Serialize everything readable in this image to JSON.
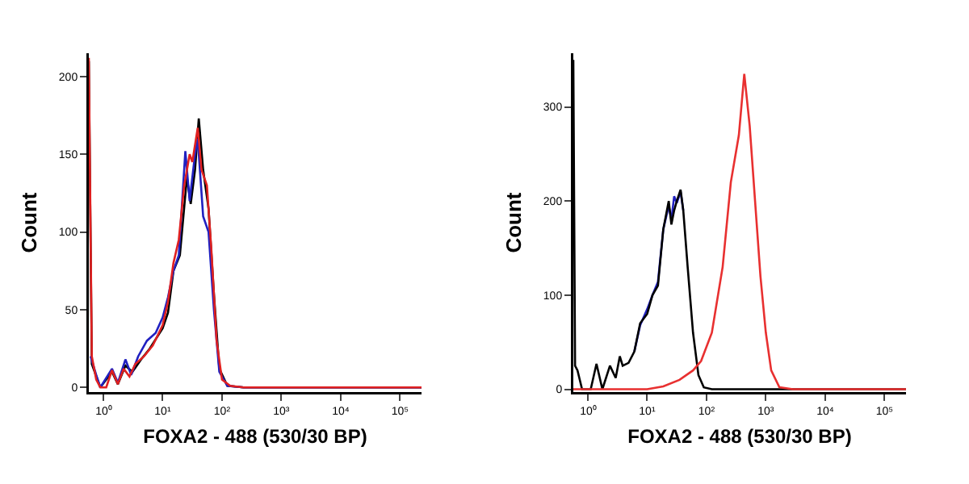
{
  "chart_data": [
    {
      "type": "line",
      "xlabel": "FOXA2 - 488 (530/30 BP)",
      "ylabel": "Count",
      "log": "x",
      "grid": false,
      "marker": "none",
      "line_style": "solid",
      "xlim": [
        0.57,
        230000
      ],
      "xticks": [
        {
          "value": 1,
          "label": "10⁰"
        },
        {
          "value": 10,
          "label": "10¹"
        },
        {
          "value": 100,
          "label": "10²"
        },
        {
          "value": 1000,
          "label": "10³"
        },
        {
          "value": 10000,
          "label": "10⁴"
        },
        {
          "value": 100000,
          "label": "10⁵"
        }
      ],
      "ylim": [
        -3,
        215
      ],
      "yticks": [
        0,
        50,
        100,
        150,
        200
      ],
      "series": [
        {
          "color": "#000000",
          "x": [
            0.57,
            0.64,
            0.89,
            1.4,
            1.76,
            2.36,
            3.09,
            4.34,
            6.08,
            10,
            12.3,
            15.2,
            19.5,
            25.6,
            29.7,
            35.1,
            40.6,
            48.1,
            59.3,
            73.1,
            90.1,
            123,
            231,
            230000
          ],
          "values": [
            210,
            15,
            0,
            10,
            2,
            14,
            10,
            18,
            25,
            38,
            48,
            75,
            85,
            135,
            118,
            140,
            173,
            140,
            115,
            60,
            12,
            1,
            0,
            0
          ]
        },
        {
          "color": "#2020c0",
          "x": [
            0.61,
            0.76,
            0.89,
            1.4,
            1.76,
            2.36,
            2.95,
            3.87,
            5.43,
            7.62,
            10,
            12.3,
            15.2,
            18.7,
            24.1,
            28.5,
            35.1,
            39,
            48.1,
            59.3,
            73.1,
            90.1,
            123,
            231,
            230000
          ],
          "values": [
            20,
            8,
            0,
            12,
            3,
            18,
            8,
            20,
            30,
            35,
            45,
            58,
            75,
            85,
            152,
            120,
            150,
            160,
            110,
            100,
            50,
            10,
            1,
            0,
            0
          ]
        },
        {
          "color": "#e02020",
          "x": [
            0.57,
            0.64,
            0.76,
            0.89,
            1.12,
            1.4,
            1.76,
            2.2,
            2.76,
            3.46,
            4.86,
            6.81,
            10,
            12.3,
            15.2,
            18.7,
            23.1,
            28.5,
            31.6,
            39,
            45.2,
            55.6,
            65.8,
            81.1,
            100,
            137,
            231,
            230000
          ],
          "values": [
            212,
            20,
            5,
            0,
            0,
            11,
            2,
            12,
            7,
            15,
            20,
            27,
            40,
            55,
            80,
            95,
            130,
            150,
            145,
            167,
            140,
            130,
            90,
            30,
            5,
            1,
            0,
            0
          ]
        }
      ]
    },
    {
      "type": "line",
      "xlabel": "FOXA2 - 488 (530/30 BP)",
      "ylabel": "Count",
      "log": "x",
      "grid": false,
      "marker": "none",
      "line_style": "solid",
      "xlim": [
        0.57,
        230000
      ],
      "xticks": [
        {
          "value": 1,
          "label": "10⁰"
        },
        {
          "value": 10,
          "label": "10¹"
        },
        {
          "value": 100,
          "label": "10²"
        },
        {
          "value": 1000,
          "label": "10³"
        },
        {
          "value": 10000,
          "label": "10⁴"
        },
        {
          "value": 100000,
          "label": "10⁵"
        }
      ],
      "ylim": [
        -3,
        357
      ],
      "yticks": [
        0,
        100,
        200,
        300
      ],
      "series": [
        {
          "color": "#2020c0",
          "x": [
            6.08,
            7.62,
            10,
            12.3,
            15.2,
            18.7,
            23.1,
            25.6,
            28.5,
            31.6,
            36.6,
            40.6
          ],
          "values": [
            40,
            68,
            85,
            100,
            114,
            170,
            195,
            180,
            205,
            198,
            210,
            190
          ]
        },
        {
          "color": "#000000",
          "x": [
            0.57,
            0.61,
            0.67,
            0.8,
            1.12,
            1.4,
            1.76,
            2.36,
            2.95,
            3.46,
            3.87,
            4.86,
            6.08,
            7.62,
            10,
            12.3,
            15.2,
            18.7,
            23.1,
            25.6,
            28.5,
            31.6,
            36.6,
            40.6,
            48.1,
            59.3,
            73.1,
            90.1,
            123,
            230000
          ],
          "values": [
            350,
            25,
            20,
            0,
            0,
            27,
            0,
            25,
            12,
            35,
            25,
            28,
            40,
            70,
            80,
            100,
            110,
            170,
            200,
            175,
            190,
            200,
            212,
            190,
            130,
            60,
            15,
            2,
            0,
            0
          ]
        },
        {
          "color": "#e83030",
          "x": [
            0.57,
            10,
            18.7,
            35.1,
            59.3,
            81.1,
            123,
            187,
            257,
            351,
            433,
            534,
            658,
            811,
            1000,
            1230,
            1690,
            2850,
            230000
          ],
          "values": [
            0,
            0,
            3,
            10,
            20,
            30,
            60,
            130,
            220,
            270,
            335,
            280,
            200,
            120,
            60,
            20,
            2,
            0,
            0
          ]
        }
      ]
    }
  ]
}
